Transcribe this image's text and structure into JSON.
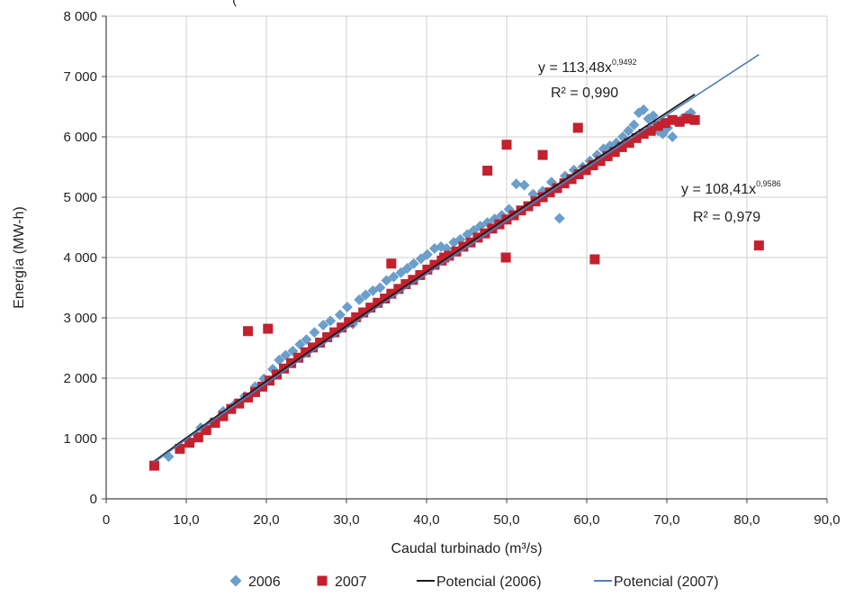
{
  "chart_data": {
    "type": "scatter",
    "title": "",
    "header_fragment": "(",
    "xlabel": "Caudal turbinado (m³/s)",
    "ylabel": "Energía (MW-h)",
    "xlim": [
      0,
      90
    ],
    "ylim": [
      0,
      8000
    ],
    "x_ticks": [
      "0",
      "10,0",
      "20,0",
      "30,0",
      "40,0",
      "50,0",
      "60,0",
      "70,0",
      "80,0",
      "90,0"
    ],
    "y_ticks": [
      "0",
      "1 000",
      "2 000",
      "3 000",
      "4 000",
      "5 000",
      "6 000",
      "7 000",
      "8 000"
    ],
    "grid": true,
    "legend_position": "bottom",
    "series": [
      {
        "name": "2006",
        "marker": "diamond",
        "color": "#6a9ecb",
        "x": [
          7.8,
          10.5,
          11.8,
          13.2,
          14.6,
          16.0,
          17.3,
          18.6,
          19.7,
          20.8,
          21.6,
          22.4,
          23.3,
          24.2,
          25.0,
          26.0,
          27.1,
          28.0,
          29.2,
          30.1,
          30.8,
          31.6,
          32.4,
          33.3,
          34.2,
          35.0,
          35.9,
          36.8,
          37.6,
          38.4,
          39.3,
          40.1,
          41.0,
          41.8,
          42.5,
          43.4,
          44.2,
          45.1,
          45.9,
          46.7,
          47.6,
          48.5,
          49.4,
          50.3,
          51.2,
          52.2,
          53.3,
          54.5,
          55.6,
          56.6,
          57.3,
          58.4,
          59.5,
          60.4,
          61.3,
          62.1,
          62.9,
          63.7,
          64.5,
          65.2,
          65.9,
          66.5,
          67.1,
          67.7,
          68.3,
          68.9,
          69.5,
          70.1,
          70.7,
          71.3,
          71.9,
          72.5,
          73.0
        ],
        "y": [
          700,
          940,
          1180,
          1270,
          1450,
          1560,
          1700,
          1860,
          1990,
          2150,
          2300,
          2380,
          2450,
          2560,
          2640,
          2760,
          2880,
          2950,
          3050,
          3180,
          2900,
          3300,
          3380,
          3450,
          3500,
          3620,
          3680,
          3750,
          3820,
          3900,
          3980,
          4050,
          4150,
          4180,
          4150,
          4250,
          4300,
          4380,
          4450,
          4520,
          4580,
          4640,
          4700,
          4800,
          5220,
          5200,
          5050,
          5100,
          5250,
          4650,
          5350,
          5450,
          5500,
          5600,
          5700,
          5800,
          5850,
          5900,
          6000,
          6100,
          6200,
          6400,
          6450,
          6300,
          6350,
          6100,
          6050,
          6150,
          6000,
          6250,
          6300,
          6350,
          6400
        ]
      },
      {
        "name": "2007",
        "marker": "square",
        "color": "#c4202e",
        "x": [
          6.0,
          9.2,
          10.4,
          11.5,
          12.5,
          13.6,
          14.6,
          15.6,
          16.6,
          17.7,
          18.6,
          19.5,
          20.4,
          21.3,
          22.2,
          23.1,
          24.0,
          24.9,
          25.8,
          26.7,
          27.6,
          28.5,
          29.4,
          30.3,
          31.2,
          32.1,
          33.0,
          33.9,
          34.8,
          35.6,
          36.5,
          37.4,
          38.3,
          39.2,
          40.1,
          41.0,
          41.9,
          42.8,
          43.7,
          44.6,
          45.5,
          46.4,
          47.3,
          48.2,
          49.1,
          50.0,
          50.9,
          51.8,
          52.7,
          53.6,
          54.5,
          55.4,
          56.3,
          57.2,
          58.1,
          59.0,
          59.9,
          60.8,
          61.7,
          62.6,
          63.5,
          64.4,
          65.3,
          66.2,
          67.1,
          68.0,
          68.9,
          69.8,
          70.7,
          71.6,
          72.5,
          73.5,
          17.7,
          20.2,
          35.6,
          42.2,
          47.6,
          49.9,
          50.0,
          54.5,
          58.9,
          61.0,
          81.5
        ],
        "y": [
          550,
          830,
          930,
          1020,
          1140,
          1260,
          1370,
          1490,
          1580,
          1680,
          1770,
          1860,
          1960,
          2060,
          2160,
          2250,
          2340,
          2430,
          2510,
          2590,
          2680,
          2760,
          2840,
          2930,
          3010,
          3090,
          3170,
          3250,
          3320,
          3400,
          3480,
          3560,
          3630,
          3710,
          3800,
          3880,
          3950,
          4030,
          4100,
          4180,
          4250,
          4330,
          4400,
          4480,
          4550,
          4630,
          4700,
          4780,
          4850,
          4930,
          5000,
          5080,
          5150,
          5230,
          5300,
          5380,
          5450,
          5530,
          5600,
          5680,
          5750,
          5830,
          5900,
          5980,
          6050,
          6100,
          6180,
          6230,
          6280,
          6250,
          6300,
          6280,
          2780,
          2820,
          3900,
          4000,
          5440,
          4000,
          5870,
          5700,
          6150,
          3970,
          4200
        ]
      }
    ],
    "trendlines": [
      {
        "name": "Potencial (2006)",
        "color": "#1c1c1c",
        "a": 113.48,
        "b": 0.9492,
        "x_range": [
          6.0,
          73.5
        ]
      },
      {
        "name": "Potencial (2007)",
        "color": "#4f7fc0",
        "a": 108.41,
        "b": 0.9586,
        "x_range": [
          6.0,
          81.5
        ]
      }
    ],
    "annotations": [
      {
        "equation_prefix": "y = 113,48x",
        "exponent": "0,9492",
        "r2": "R² = 0,990"
      },
      {
        "equation_prefix": "y = 108,41x",
        "exponent": "0,9586",
        "r2": "R² = 0,979"
      }
    ],
    "legend": [
      "2006",
      "2007",
      "Potencial (2006)",
      "Potencial (2007)"
    ]
  }
}
